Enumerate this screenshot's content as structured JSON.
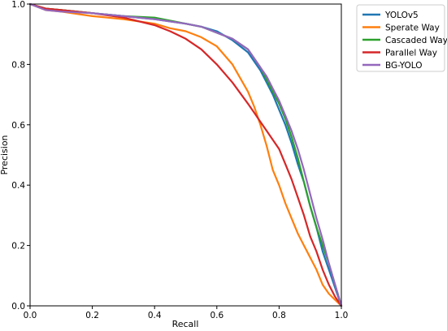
{
  "chart_data": {
    "type": "line",
    "title": "",
    "xlabel": "Recall",
    "ylabel": "Precision",
    "xlim": [
      0.0,
      1.0
    ],
    "ylim": [
      0.0,
      1.0
    ],
    "xticks": [
      "0.0",
      "0.2",
      "0.4",
      "0.6",
      "0.8",
      "1.0"
    ],
    "yticks": [
      "0.0",
      "0.2",
      "0.4",
      "0.6",
      "0.8",
      "1.0"
    ],
    "grid": false,
    "legend_position": "outside-top-right",
    "series": [
      {
        "name": "YOLOv5",
        "color": "#1f77b4",
        "x": [
          0.0,
          0.05,
          0.1,
          0.2,
          0.3,
          0.4,
          0.5,
          0.55,
          0.6,
          0.65,
          0.7,
          0.72,
          0.74,
          0.76,
          0.78,
          0.8,
          0.82,
          0.84,
          0.86,
          0.88,
          0.9,
          0.92,
          0.94,
          0.96,
          0.98,
          1.0
        ],
        "y": [
          1.0,
          0.985,
          0.98,
          0.97,
          0.96,
          0.95,
          0.935,
          0.925,
          0.91,
          0.88,
          0.84,
          0.81,
          0.78,
          0.74,
          0.7,
          0.65,
          0.6,
          0.54,
          0.47,
          0.41,
          0.33,
          0.26,
          0.18,
          0.12,
          0.06,
          0.0
        ]
      },
      {
        "name": "Sperate Way",
        "color": "#ff7f0e",
        "x": [
          0.0,
          0.05,
          0.1,
          0.2,
          0.3,
          0.4,
          0.45,
          0.5,
          0.55,
          0.6,
          0.65,
          0.7,
          0.72,
          0.74,
          0.76,
          0.78,
          0.8,
          0.82,
          0.84,
          0.86,
          0.88,
          0.9,
          0.92,
          0.94,
          0.96,
          0.98,
          1.0
        ],
        "y": [
          1.0,
          0.98,
          0.975,
          0.96,
          0.95,
          0.935,
          0.92,
          0.91,
          0.89,
          0.86,
          0.8,
          0.71,
          0.66,
          0.6,
          0.53,
          0.45,
          0.4,
          0.34,
          0.29,
          0.24,
          0.2,
          0.16,
          0.12,
          0.07,
          0.04,
          0.02,
          0.0
        ]
      },
      {
        "name": "Cascaded Way",
        "color": "#2ca02c",
        "x": [
          0.0,
          0.05,
          0.1,
          0.2,
          0.3,
          0.4,
          0.5,
          0.55,
          0.6,
          0.65,
          0.7,
          0.72,
          0.74,
          0.76,
          0.78,
          0.8,
          0.82,
          0.84,
          0.86,
          0.88,
          0.9,
          0.92,
          0.94,
          0.96,
          0.98,
          1.0
        ],
        "y": [
          1.0,
          0.985,
          0.98,
          0.97,
          0.96,
          0.955,
          0.935,
          0.925,
          0.905,
          0.885,
          0.85,
          0.82,
          0.79,
          0.75,
          0.71,
          0.67,
          0.62,
          0.56,
          0.49,
          0.41,
          0.33,
          0.26,
          0.2,
          0.14,
          0.07,
          0.0
        ]
      },
      {
        "name": "Parallel Way",
        "color": "#d62728",
        "x": [
          0.0,
          0.05,
          0.1,
          0.2,
          0.3,
          0.4,
          0.45,
          0.5,
          0.55,
          0.6,
          0.65,
          0.7,
          0.72,
          0.74,
          0.76,
          0.78,
          0.8,
          0.82,
          0.84,
          0.86,
          0.88,
          0.9,
          0.92,
          0.94,
          0.96,
          0.98,
          1.0
        ],
        "y": [
          1.0,
          0.985,
          0.98,
          0.97,
          0.955,
          0.93,
          0.91,
          0.885,
          0.85,
          0.8,
          0.74,
          0.67,
          0.64,
          0.61,
          0.58,
          0.55,
          0.52,
          0.47,
          0.42,
          0.36,
          0.3,
          0.23,
          0.18,
          0.12,
          0.07,
          0.03,
          0.0
        ]
      },
      {
        "name": "BG-YOLO",
        "color": "#9467bd",
        "x": [
          0.0,
          0.05,
          0.1,
          0.2,
          0.3,
          0.4,
          0.5,
          0.55,
          0.6,
          0.65,
          0.7,
          0.72,
          0.74,
          0.76,
          0.78,
          0.8,
          0.82,
          0.84,
          0.86,
          0.88,
          0.9,
          0.92,
          0.94,
          0.96,
          0.98,
          1.0
        ],
        "y": [
          1.0,
          0.98,
          0.975,
          0.97,
          0.96,
          0.95,
          0.935,
          0.925,
          0.905,
          0.885,
          0.85,
          0.82,
          0.79,
          0.76,
          0.72,
          0.68,
          0.63,
          0.58,
          0.52,
          0.45,
          0.37,
          0.29,
          0.22,
          0.14,
          0.07,
          0.0
        ]
      }
    ]
  }
}
